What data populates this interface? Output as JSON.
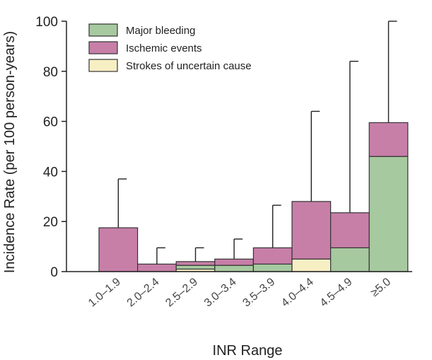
{
  "chart_data": {
    "type": "bar",
    "stacked": true,
    "xlabel": "INR Range",
    "ylabel": "Incidence Rate (per 100 person-years)",
    "ylim": [
      0,
      100
    ],
    "yticks": [
      0,
      20,
      40,
      60,
      80,
      100
    ],
    "legend_position": "top-left",
    "categories": [
      "1.0–1.9",
      "2.0–2.4",
      "2.5–2.9",
      "3.0–3.4",
      "3.5–3.9",
      "4.0–4.4",
      "4.5–4.9",
      "≥5.0"
    ],
    "series": [
      {
        "name": "Strokes of uncertain cause",
        "color": "#f7efc4",
        "values": [
          0,
          0,
          1,
          0,
          0,
          5,
          0,
          0
        ]
      },
      {
        "name": "Major bleeding",
        "color": "#a7c9a0",
        "values": [
          0,
          0,
          1.5,
          2.5,
          3,
          0,
          9.5,
          46
        ]
      },
      {
        "name": "Ischemic events",
        "color": "#c77fa8",
        "values": [
          17.5,
          3,
          1.5,
          2.5,
          6.5,
          23,
          14,
          13.5
        ]
      }
    ],
    "legend_order": [
      "Major bleeding",
      "Ischemic events",
      "Strokes of uncertain cause"
    ],
    "error_upper": [
      37,
      9.5,
      9.5,
      13,
      26.5,
      64,
      84,
      100
    ]
  }
}
